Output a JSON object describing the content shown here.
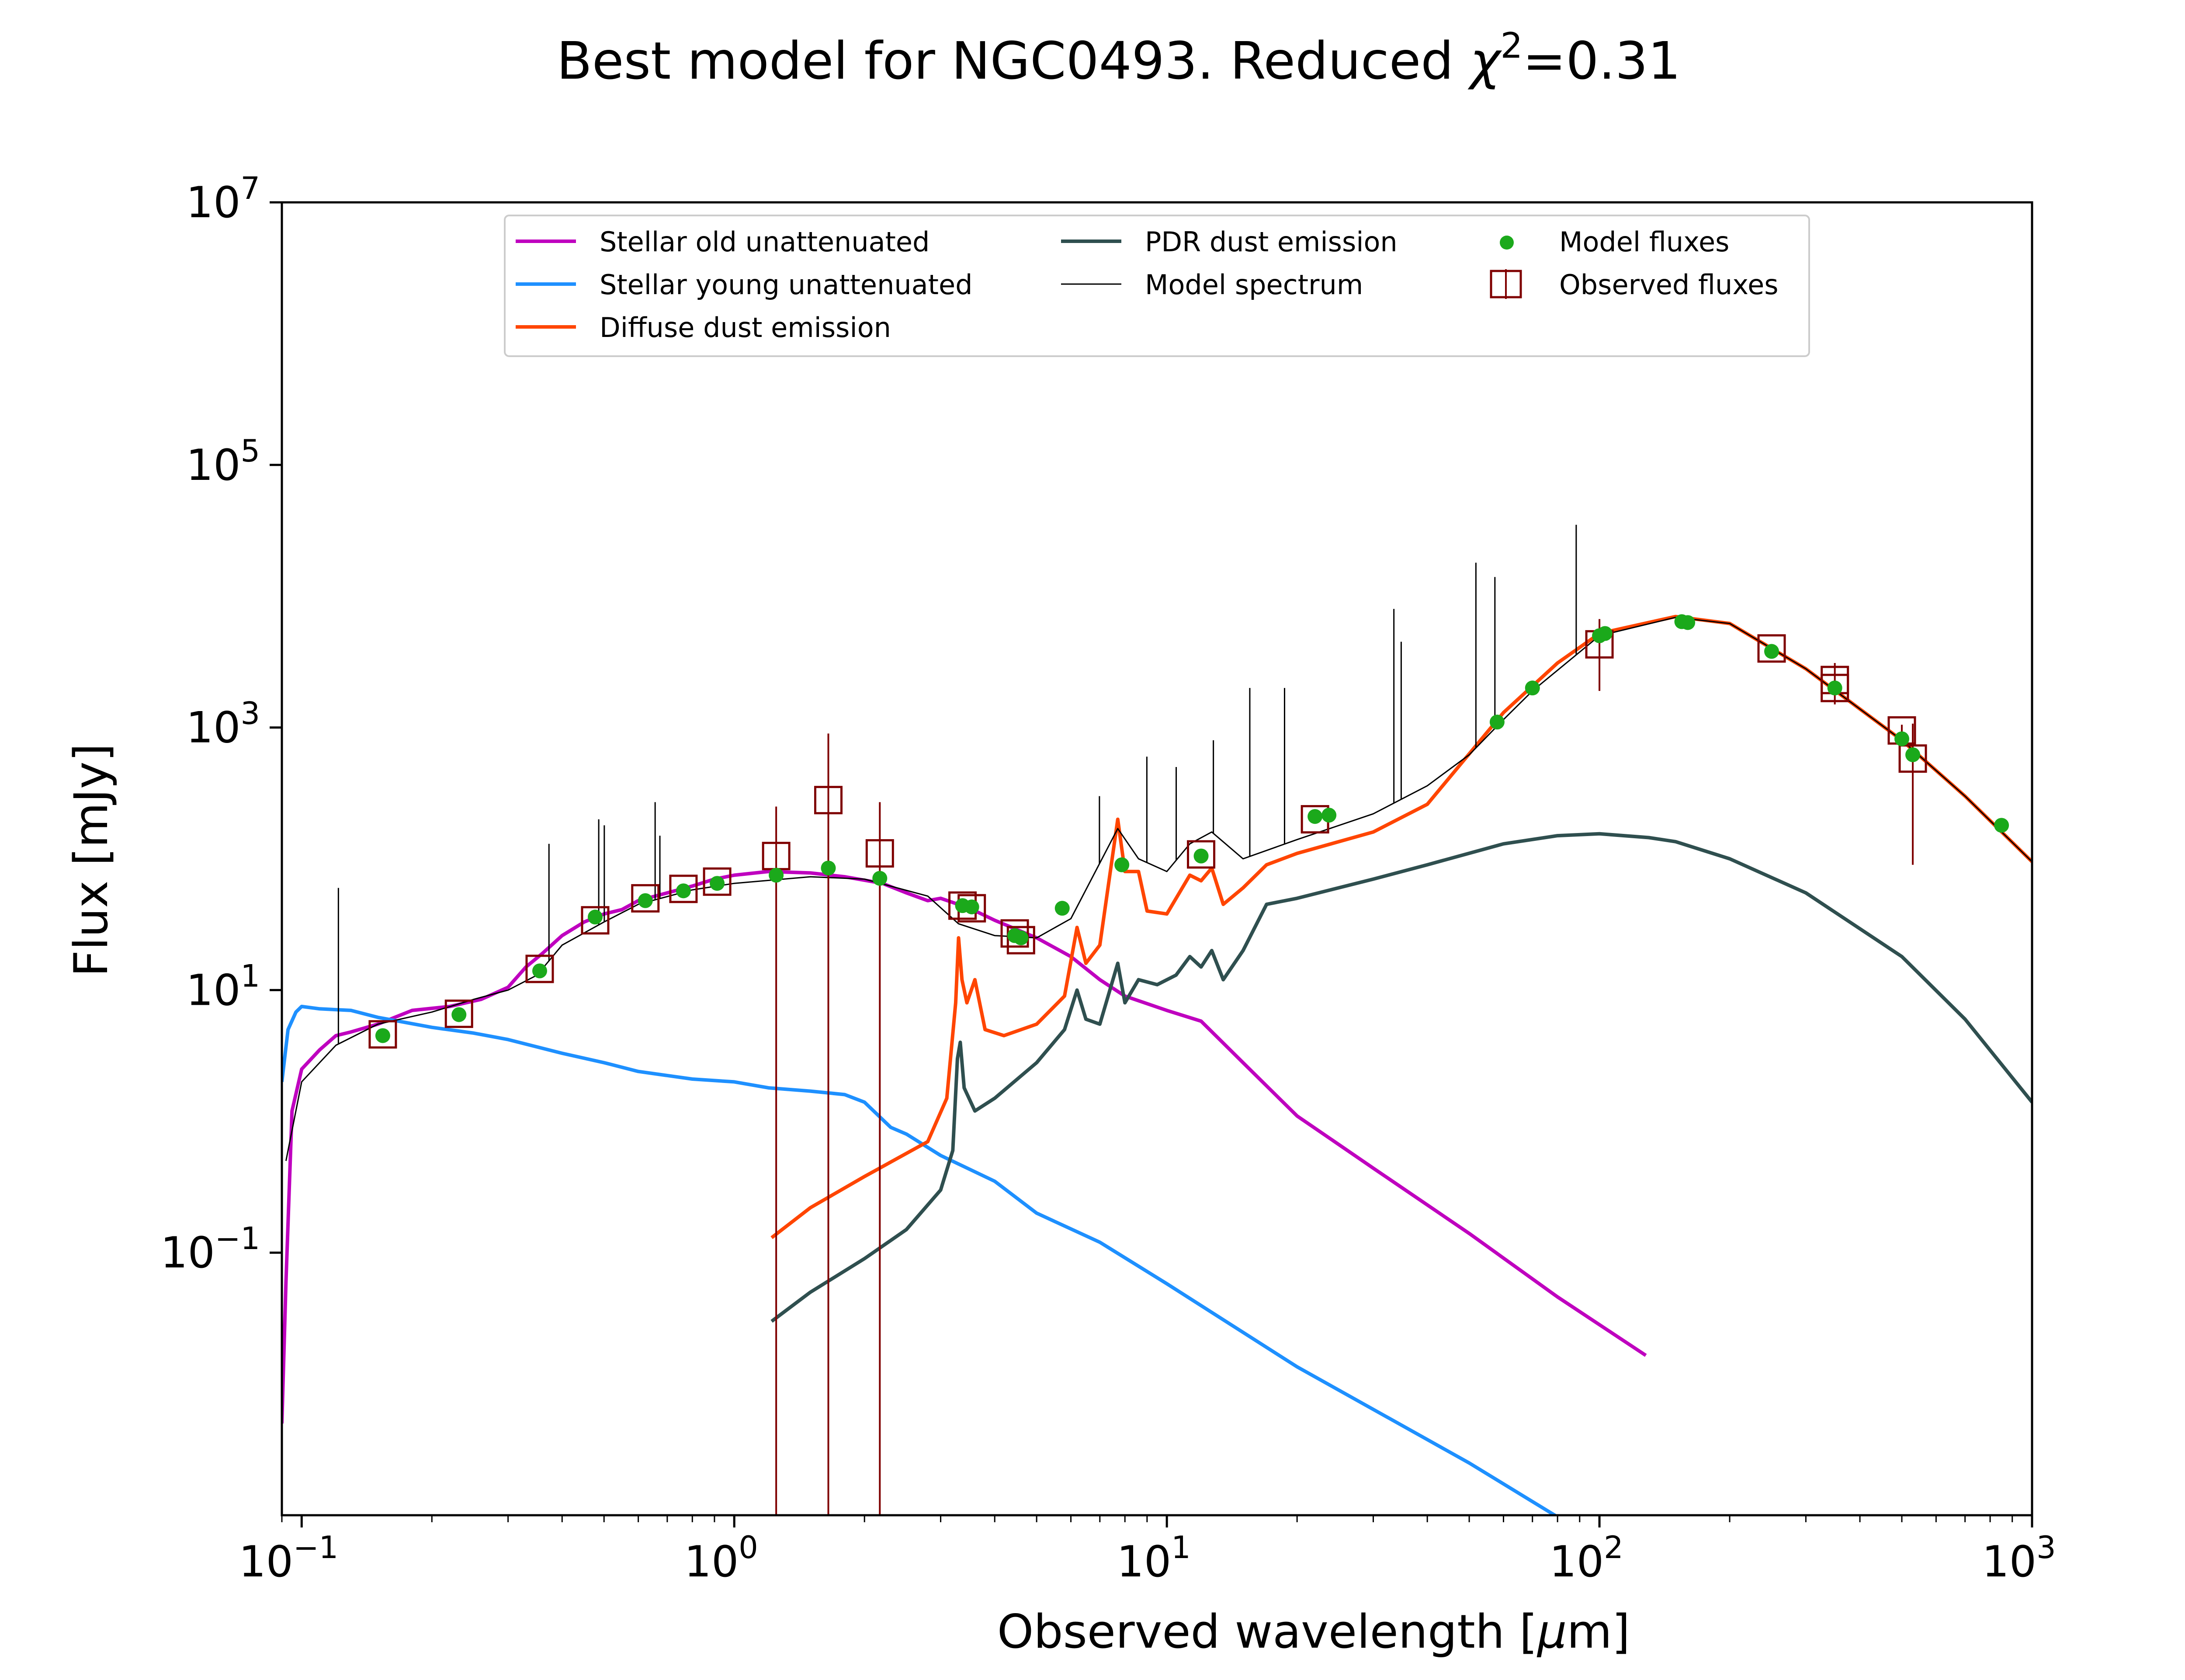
{
  "chart_data": {
    "type": "line",
    "title": {
      "prefix": "Best model for NGC0493. Reduced ",
      "chi_symbol": "χ",
      "chi_exponent": "2",
      "suffix": "=0.31"
    },
    "xlabel": {
      "prefix": "Observed wavelength [",
      "mu": "μ",
      "suffix": "m]"
    },
    "ylabel": "Flux [mJy]",
    "x_scale": "log",
    "y_scale": "log",
    "xlim": [
      0.09,
      1000
    ],
    "ylim": [
      0.001,
      10000000
    ],
    "x_ticks": [
      {
        "value": 0.1,
        "base": "10",
        "exp": "−1"
      },
      {
        "value": 1,
        "base": "10",
        "exp": "0"
      },
      {
        "value": 10,
        "base": "10",
        "exp": "1"
      },
      {
        "value": 100,
        "base": "10",
        "exp": "2"
      },
      {
        "value": 1000,
        "base": "10",
        "exp": "3"
      }
    ],
    "y_ticks": [
      {
        "value": 0.1,
        "base": "10",
        "exp": "−1"
      },
      {
        "value": 10,
        "base": "10",
        "exp": "1"
      },
      {
        "value": 1000,
        "base": "10",
        "exp": "3"
      },
      {
        "value": 100000,
        "base": "10",
        "exp": "5"
      },
      {
        "value": 10000000,
        "base": "10",
        "exp": "7"
      }
    ],
    "grid": false,
    "legend": {
      "placement": "top-center",
      "entries": [
        {
          "label": "Stellar old unattenuated",
          "color": "#bf00bf",
          "kind": "line"
        },
        {
          "label": "Stellar young unattenuated",
          "color": "#1e90ff",
          "kind": "line"
        },
        {
          "label": "Diffuse dust emission",
          "color": "#ff4500",
          "kind": "line"
        },
        {
          "label": "PDR dust emission",
          "color": "#2f4f4f",
          "kind": "line"
        },
        {
          "label": "Model spectrum",
          "color": "#000000",
          "kind": "thin-line"
        },
        {
          "label": "Model fluxes",
          "color": "#1ba91b",
          "kind": "dot"
        },
        {
          "label": "Observed fluxes",
          "color": "#7f0000",
          "kind": "square"
        }
      ]
    },
    "series": [
      {
        "name": "Stellar old unattenuated",
        "color": "#bf00bf",
        "points": [
          [
            0.09,
            0.005
          ],
          [
            0.092,
            0.06
          ],
          [
            0.095,
            1.2
          ],
          [
            0.1,
            2.5
          ],
          [
            0.11,
            3.5
          ],
          [
            0.12,
            4.5
          ],
          [
            0.13,
            4.8
          ],
          [
            0.15,
            5.5
          ],
          [
            0.18,
            7.0
          ],
          [
            0.22,
            7.5
          ],
          [
            0.26,
            8.5
          ],
          [
            0.3,
            10.5
          ],
          [
            0.33,
            15
          ],
          [
            0.36,
            19
          ],
          [
            0.4,
            26
          ],
          [
            0.45,
            33
          ],
          [
            0.5,
            38
          ],
          [
            0.55,
            41
          ],
          [
            0.6,
            48
          ],
          [
            0.7,
            55
          ],
          [
            0.8,
            62
          ],
          [
            0.9,
            70
          ],
          [
            1.0,
            75
          ],
          [
            1.2,
            80
          ],
          [
            1.5,
            78
          ],
          [
            1.8,
            73
          ],
          [
            2.2,
            65
          ],
          [
            2.5,
            55
          ],
          [
            2.8,
            48
          ],
          [
            3.0,
            50
          ],
          [
            3.5,
            42
          ],
          [
            4.0,
            34
          ],
          [
            5.0,
            25
          ],
          [
            6.0,
            18
          ],
          [
            7.0,
            12
          ],
          [
            8.0,
            9
          ],
          [
            10,
            7
          ],
          [
            12,
            5.8
          ],
          [
            15,
            2.8
          ],
          [
            20,
            1.1
          ],
          [
            30,
            0.44
          ],
          [
            50,
            0.14
          ],
          [
            80,
            0.046
          ],
          [
            128,
            0.0165
          ]
        ]
      },
      {
        "name": "Stellar young unattenuated",
        "color": "#1e90ff",
        "points": [
          [
            0.09,
            2.0
          ],
          [
            0.093,
            5.0
          ],
          [
            0.097,
            6.8
          ],
          [
            0.1,
            7.5
          ],
          [
            0.11,
            7.2
          ],
          [
            0.13,
            7.0
          ],
          [
            0.15,
            6.2
          ],
          [
            0.2,
            5.2
          ],
          [
            0.25,
            4.7
          ],
          [
            0.3,
            4.2
          ],
          [
            0.4,
            3.3
          ],
          [
            0.5,
            2.8
          ],
          [
            0.6,
            2.4
          ],
          [
            0.8,
            2.1
          ],
          [
            1.0,
            2.0
          ],
          [
            1.2,
            1.8
          ],
          [
            1.5,
            1.7
          ],
          [
            1.8,
            1.6
          ],
          [
            2.0,
            1.4
          ],
          [
            2.3,
            0.9
          ],
          [
            2.5,
            0.8
          ],
          [
            3.0,
            0.55
          ],
          [
            4.0,
            0.35
          ],
          [
            5.0,
            0.2
          ],
          [
            7.0,
            0.12
          ],
          [
            10,
            0.058
          ],
          [
            20,
            0.0135
          ],
          [
            50,
            0.0025
          ],
          [
            100,
            0.00062
          ],
          [
            120,
            0.00043
          ]
        ]
      },
      {
        "name": "Diffuse dust emission",
        "color": "#ff4500",
        "points": [
          [
            1.22,
            0.13
          ],
          [
            1.5,
            0.22
          ],
          [
            2.0,
            0.38
          ],
          [
            2.8,
            0.7
          ],
          [
            3.1,
            1.5
          ],
          [
            3.25,
            8
          ],
          [
            3.3,
            25
          ],
          [
            3.36,
            12
          ],
          [
            3.45,
            8
          ],
          [
            3.6,
            12
          ],
          [
            3.8,
            5
          ],
          [
            4.2,
            4.5
          ],
          [
            5.0,
            5.5
          ],
          [
            5.8,
            9
          ],
          [
            6.2,
            30
          ],
          [
            6.5,
            16
          ],
          [
            7.0,
            22
          ],
          [
            7.7,
            200
          ],
          [
            8.0,
            80
          ],
          [
            8.6,
            80
          ],
          [
            9.0,
            40
          ],
          [
            10,
            38
          ],
          [
            11.3,
            75
          ],
          [
            12.0,
            68
          ],
          [
            12.7,
            85
          ],
          [
            13.5,
            45
          ],
          [
            15,
            60
          ],
          [
            17,
            90
          ],
          [
            20,
            110
          ],
          [
            30,
            160
          ],
          [
            40,
            260
          ],
          [
            60,
            1300
          ],
          [
            80,
            3100
          ],
          [
            100,
            5200
          ],
          [
            150,
            7000
          ],
          [
            200,
            6200
          ],
          [
            300,
            2800
          ],
          [
            500,
            800
          ],
          [
            700,
            300
          ],
          [
            1000,
            95
          ]
        ]
      },
      {
        "name": "PDR dust emission",
        "color": "#2f4f4f",
        "points": [
          [
            1.22,
            0.03
          ],
          [
            1.5,
            0.05
          ],
          [
            2.0,
            0.09
          ],
          [
            2.5,
            0.15
          ],
          [
            3.0,
            0.3
          ],
          [
            3.2,
            0.6
          ],
          [
            3.28,
            3
          ],
          [
            3.33,
            4
          ],
          [
            3.4,
            1.8
          ],
          [
            3.6,
            1.2
          ],
          [
            4.0,
            1.5
          ],
          [
            5.0,
            2.8
          ],
          [
            5.8,
            5
          ],
          [
            6.2,
            10
          ],
          [
            6.5,
            6
          ],
          [
            7.0,
            5.5
          ],
          [
            7.7,
            16
          ],
          [
            8.0,
            8
          ],
          [
            8.6,
            12
          ],
          [
            9.5,
            11
          ],
          [
            10.5,
            13
          ],
          [
            11.3,
            18
          ],
          [
            12.0,
            15
          ],
          [
            12.7,
            20
          ],
          [
            13.5,
            12
          ],
          [
            15,
            20
          ],
          [
            17,
            45
          ],
          [
            20,
            50
          ],
          [
            30,
            70
          ],
          [
            40,
            90
          ],
          [
            60,
            130
          ],
          [
            80,
            150
          ],
          [
            100,
            155
          ],
          [
            130,
            145
          ],
          [
            150,
            135
          ],
          [
            200,
            100
          ],
          [
            300,
            55
          ],
          [
            500,
            18
          ],
          [
            700,
            6
          ],
          [
            1000,
            1.4
          ]
        ]
      },
      {
        "name": "Model spectrum",
        "color": "#000000",
        "points": [
          [
            0.092,
            0.5
          ],
          [
            0.1,
            2.0
          ],
          [
            0.12,
            3.8
          ],
          [
            0.15,
            5.5
          ],
          [
            0.2,
            6.8
          ],
          [
            0.25,
            8.5
          ],
          [
            0.3,
            10
          ],
          [
            0.35,
            13
          ],
          [
            0.4,
            22
          ],
          [
            0.5,
            33
          ],
          [
            0.6,
            45
          ],
          [
            0.8,
            58
          ],
          [
            1.0,
            65
          ],
          [
            1.5,
            73
          ],
          [
            2.0,
            70
          ],
          [
            2.8,
            52
          ],
          [
            3.3,
            32
          ],
          [
            4.0,
            26
          ],
          [
            5.0,
            25
          ],
          [
            6.0,
            35
          ],
          [
            7.7,
            170
          ],
          [
            8.6,
            100
          ],
          [
            10,
            80
          ],
          [
            11.3,
            130
          ],
          [
            12.7,
            160
          ],
          [
            15,
            100
          ],
          [
            20,
            140
          ],
          [
            30,
            220
          ],
          [
            40,
            360
          ],
          [
            50,
            620
          ],
          [
            60,
            1150
          ],
          [
            70,
            1900
          ],
          [
            100,
            5000
          ],
          [
            150,
            6900
          ],
          [
            200,
            6200
          ],
          [
            300,
            2800
          ],
          [
            500,
            800
          ],
          [
            700,
            300
          ],
          [
            1000,
            95
          ]
        ]
      }
    ],
    "emission_lines": [
      {
        "x": 0.1216,
        "top": 60
      },
      {
        "x": 0.373,
        "top": 130
      },
      {
        "x": 0.4861,
        "top": 200
      },
      {
        "x": 0.5007,
        "top": 180
      },
      {
        "x": 0.6563,
        "top": 270
      },
      {
        "x": 0.6731,
        "top": 150
      },
      {
        "x": 6.985,
        "top": 300
      },
      {
        "x": 8.99,
        "top": 600
      },
      {
        "x": 10.51,
        "top": 500
      },
      {
        "x": 12.81,
        "top": 800
      },
      {
        "x": 15.55,
        "top": 2000
      },
      {
        "x": 18.71,
        "top": 2000
      },
      {
        "x": 33.48,
        "top": 8000
      },
      {
        "x": 34.81,
        "top": 4500
      },
      {
        "x": 51.81,
        "top": 18000
      },
      {
        "x": 57.32,
        "top": 14000
      },
      {
        "x": 88.36,
        "top": 35000
      }
    ],
    "model_fluxes": [
      [
        0.154,
        4.5
      ],
      [
        0.231,
        6.5
      ],
      [
        0.355,
        14
      ],
      [
        0.477,
        36
      ],
      [
        0.623,
        48
      ],
      [
        0.763,
        57
      ],
      [
        0.913,
        65
      ],
      [
        1.25,
        75
      ],
      [
        1.65,
        85
      ],
      [
        2.17,
        71
      ],
      [
        3.37,
        44
      ],
      [
        3.54,
        43
      ],
      [
        4.45,
        26
      ],
      [
        4.6,
        25
      ],
      [
        5.73,
        42
      ],
      [
        7.87,
        90
      ],
      [
        12,
        105
      ],
      [
        22,
        210
      ],
      [
        23.7,
        215
      ],
      [
        58,
        1100
      ],
      [
        70,
        2000
      ],
      [
        100,
        5000
      ],
      [
        103,
        5200
      ],
      [
        155,
        6400
      ],
      [
        160,
        6300
      ],
      [
        250,
        3800
      ],
      [
        350,
        2000
      ],
      [
        500,
        820
      ],
      [
        530,
        620
      ],
      [
        850,
        180
      ]
    ],
    "observed_fluxes": [
      {
        "x": 0.154,
        "y": 4.6,
        "lo": 4.4,
        "hi": 4.8
      },
      {
        "x": 0.231,
        "y": 6.6,
        "lo": 6.3,
        "hi": 6.9
      },
      {
        "x": 0.355,
        "y": 14.5,
        "lo": 14.0,
        "hi": 15.0
      },
      {
        "x": 0.477,
        "y": 34,
        "lo": 33,
        "hi": 35
      },
      {
        "x": 0.623,
        "y": 50,
        "lo": 48,
        "hi": 52
      },
      {
        "x": 0.763,
        "y": 59,
        "lo": 57,
        "hi": 61
      },
      {
        "x": 0.913,
        "y": 67,
        "lo": 65,
        "hi": 69
      },
      {
        "x": 1.25,
        "y": 105,
        "lo": 0.001,
        "hi": 250
      },
      {
        "x": 1.65,
        "y": 280,
        "lo": 0.001,
        "hi": 900
      },
      {
        "x": 2.17,
        "y": 110,
        "lo": 0.001,
        "hi": 270
      },
      {
        "x": 3.37,
        "y": 44,
        "lo": 42,
        "hi": 46
      },
      {
        "x": 3.54,
        "y": 42,
        "lo": 40,
        "hi": 44
      },
      {
        "x": 4.45,
        "y": 27,
        "lo": 26,
        "hi": 28
      },
      {
        "x": 4.6,
        "y": 24,
        "lo": 23,
        "hi": 25
      },
      {
        "x": 12,
        "y": 108,
        "lo": 100,
        "hi": 116
      },
      {
        "x": 22,
        "y": 200,
        "lo": 190,
        "hi": 210
      },
      {
        "x": 100,
        "y": 4300,
        "lo": 1900,
        "hi": 6700
      },
      {
        "x": 250,
        "y": 4000,
        "lo": 3700,
        "hi": 4300
      },
      {
        "x": 350,
        "y": 2300,
        "lo": 1500,
        "hi": 3100
      },
      {
        "x": 350,
        "y": 2000,
        "lo": 1800,
        "hi": 2200
      },
      {
        "x": 500,
        "y": 950,
        "lo": 850,
        "hi": 1050
      },
      {
        "x": 530,
        "y": 580,
        "lo": 90,
        "hi": 1070
      }
    ]
  }
}
